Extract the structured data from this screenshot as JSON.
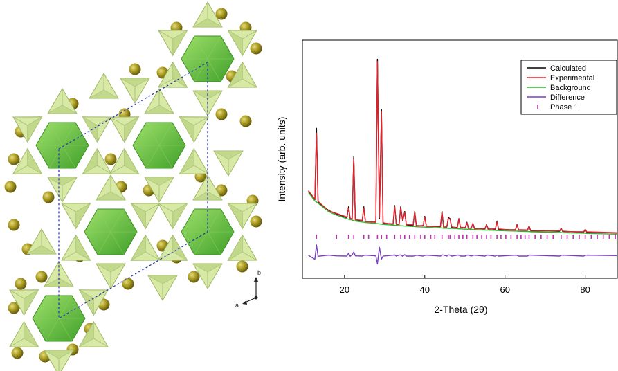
{
  "structure": {
    "axis_labels": [
      "b",
      "a"
    ]
  },
  "chart_data": {
    "type": "line",
    "xlabel": "2-Theta (2θ)",
    "ylabel": "Intensity (arb. units)",
    "xlim": [
      9.5,
      88
    ],
    "ylim": [
      0,
      100
    ],
    "xticks": [
      20,
      40,
      60,
      80
    ],
    "legend": "upper right",
    "grid": false,
    "x": [
      11,
      12.6,
      13,
      13.4,
      16,
      18,
      20.6,
      21,
      21.4,
      21.9,
      22.3,
      22.7,
      24.4,
      24.8,
      25.2,
      27.8,
      28.2,
      28.7,
      29.2,
      29.6,
      32.1,
      32.5,
      32.9,
      33.6,
      34,
      34.5,
      35,
      35.4,
      37.1,
      37.5,
      37.9,
      39.6,
      40,
      40.4,
      43.9,
      44.3,
      44.7,
      45.5,
      45.9,
      46.3,
      46.7,
      48.1,
      48.5,
      48.9,
      50.1,
      50.5,
      50.9,
      51.6,
      52,
      52.4,
      55,
      55.4,
      55.8,
      57.6,
      58,
      58.4,
      62.6,
      63,
      63.4,
      65.6,
      66,
      66.4,
      73.6,
      74,
      74.4,
      79.6,
      80,
      80.4,
      88
    ],
    "series": [
      {
        "name": "Calculated",
        "color": "#000000",
        "values": [
          36.5,
          33,
          63,
          32,
          28.5,
          27,
          25.5,
          30,
          25.1,
          24.9,
          51,
          24.5,
          24.1,
          30,
          23.9,
          23.5,
          92,
          25,
          71,
          23.1,
          22.8,
          30.5,
          22.7,
          22.6,
          30,
          24,
          28,
          22.4,
          22.2,
          28,
          22.1,
          22,
          26,
          21.9,
          21.6,
          28,
          21.5,
          21.5,
          25.5,
          25,
          21.4,
          21.3,
          25,
          21.2,
          21.1,
          23.5,
          21,
          21,
          23,
          20.9,
          20.7,
          22.5,
          20.7,
          20.6,
          24,
          20.5,
          20.3,
          22.5,
          20.2,
          20.1,
          22,
          20,
          19.7,
          21,
          19.6,
          19.4,
          20.5,
          19.3,
          19
        ]
      },
      {
        "name": "Experimental",
        "color": "#e8202a",
        "values": [
          36.8,
          33.2,
          61,
          32.3,
          28.3,
          27.2,
          25.7,
          29.5,
          25.3,
          24.7,
          50,
          24.6,
          24.3,
          29.6,
          23.7,
          23.6,
          91,
          25.4,
          70,
          23.3,
          22.6,
          30,
          22.9,
          22.4,
          29.6,
          24.3,
          27.6,
          22.6,
          22.4,
          27.7,
          21.9,
          22.2,
          25.8,
          21.7,
          21.8,
          27.6,
          21.3,
          21.7,
          25.2,
          24.8,
          21.6,
          21.1,
          24.8,
          21.4,
          21.3,
          23.3,
          20.8,
          21.2,
          22.9,
          20.7,
          20.9,
          22.3,
          20.5,
          20.8,
          23.8,
          20.7,
          20.1,
          22.4,
          20.4,
          20.3,
          21.8,
          19.8,
          19.9,
          20.9,
          19.8,
          19.2,
          20.4,
          19.5,
          19.1
        ]
      },
      {
        "name": "Background",
        "color": "#2fb52f",
        "values": [
          36,
          32.5,
          32,
          31.5,
          28,
          26.5,
          25,
          24.8,
          24.6,
          24.4,
          24.2,
          24,
          23.6,
          23.5,
          23.4,
          23,
          22.9,
          22.8,
          22.7,
          22.6,
          22.3,
          22.2,
          22.2,
          22.1,
          22,
          22,
          21.9,
          21.9,
          21.7,
          21.7,
          21.6,
          21.5,
          21.5,
          21.4,
          21.1,
          21.1,
          21,
          21,
          20.9,
          20.9,
          20.9,
          20.8,
          20.7,
          20.7,
          20.6,
          20.6,
          20.5,
          20.5,
          20.4,
          20.4,
          20.2,
          20.2,
          20.2,
          20.1,
          20,
          20,
          19.8,
          19.8,
          19.7,
          19.6,
          19.6,
          19.5,
          19.2,
          19.2,
          19.1,
          18.9,
          18.9,
          18.8,
          18.5
        ]
      },
      {
        "name": "Difference",
        "color": "#7a3fbf",
        "values": [
          9.6,
          8,
          14,
          9.2,
          9.7,
          9.4,
          9.3,
          10.5,
          9.2,
          9.8,
          11,
          9.4,
          9.3,
          9.6,
          9.7,
          9.4,
          6,
          13,
          8,
          9.3,
          9.7,
          9.8,
          9.3,
          9.7,
          9.8,
          9.2,
          9.9,
          9.3,
          9.3,
          9.4,
          9.7,
          9.3,
          9.6,
          9.7,
          9.3,
          9.8,
          9.7,
          9.3,
          9.8,
          9.7,
          9.3,
          9.7,
          9.7,
          9.3,
          9.3,
          9.7,
          9.7,
          9.3,
          9.6,
          9.7,
          9.3,
          9.7,
          9.7,
          9.3,
          9.7,
          9.3,
          9.7,
          9.6,
          9.3,
          9.3,
          9.7,
          9.7,
          9.3,
          9.6,
          9.7,
          9.3,
          9.6,
          9.7,
          9.5
        ]
      },
      {
        "name": "Phase 1",
        "color": "#c030b0",
        "marker": "|",
        "x": [
          13,
          18,
          21,
          22.3,
          24.8,
          26,
          28.2,
          29.2,
          30.5,
          32.5,
          34,
          35,
          36.2,
          37.5,
          39,
          40,
          41.5,
          42.5,
          44.3,
          45.9,
          46.3,
          47.5,
          48.5,
          49.5,
          50.5,
          52,
          53,
          54.2,
          55.4,
          56.5,
          58,
          59,
          60.2,
          61.5,
          63,
          64,
          65,
          66,
          67.5,
          69,
          70.5,
          72,
          74,
          75.5,
          77,
          78.5,
          80,
          81.5,
          83,
          84.5,
          86,
          87.5
        ],
        "values": [
          17.4,
          17.4,
          17.4,
          17.4,
          17.4,
          17.4,
          17.4,
          17.4,
          17.4,
          17.4,
          17.4,
          17.4,
          17.4,
          17.4,
          17.4,
          17.4,
          17.4,
          17.4,
          17.4,
          17.4,
          17.4,
          17.4,
          17.4,
          17.4,
          17.4,
          17.4,
          17.4,
          17.4,
          17.4,
          17.4,
          17.4,
          17.4,
          17.4,
          17.4,
          17.4,
          17.4,
          17.4,
          17.4,
          17.4,
          17.4,
          17.4,
          17.4,
          17.4,
          17.4,
          17.4,
          17.4,
          17.4,
          17.4,
          17.4,
          17.4,
          17.4,
          17.4
        ]
      }
    ]
  }
}
